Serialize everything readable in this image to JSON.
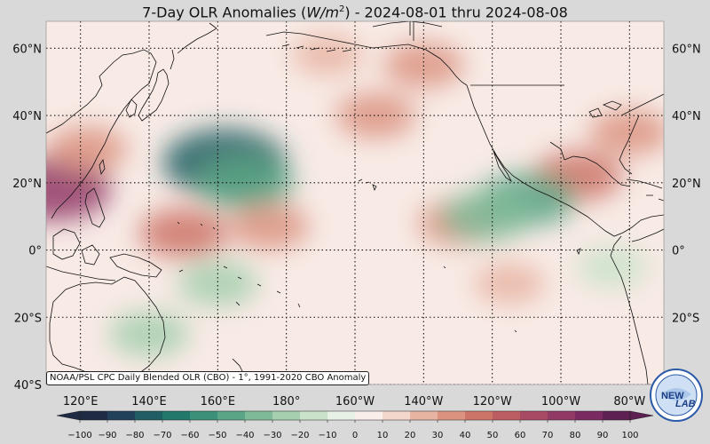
{
  "title": {
    "prefix": "7-Day OLR Anomalies (",
    "unit_var": "W/m",
    "unit_exp": "2",
    "suffix": ") - 2024-08-01 thru 2024-08-08"
  },
  "map": {
    "lat_labels": [
      "60°N",
      "40°N",
      "20°N",
      "0°",
      "20°S",
      "40°S"
    ],
    "lat_values": [
      60,
      40,
      20,
      0,
      -20,
      -40
    ],
    "lon_labels": [
      "120°E",
      "140°E",
      "160°E",
      "180°",
      "160°W",
      "140°W",
      "120°W",
      "100°W",
      "80°W"
    ],
    "lon_values": [
      120,
      140,
      160,
      180,
      200,
      220,
      240,
      260,
      280
    ],
    "lat_range": [
      -40,
      68
    ],
    "lon_range": [
      110,
      290
    ],
    "gridlines": true,
    "anomaly_fields": [
      {
        "lon": 206,
        "lat": 40,
        "value": 30,
        "note": "positive"
      },
      {
        "lon": 162,
        "lat": 26,
        "value": -80,
        "note": "negative"
      },
      {
        "lon": 168,
        "lat": 20,
        "value": -50,
        "note": "negative"
      },
      {
        "lon": 112,
        "lat": 18,
        "value": 70,
        "note": "positive"
      },
      {
        "lon": 122,
        "lat": 30,
        "value": 30,
        "note": "positive"
      },
      {
        "lon": 175,
        "lat": 7,
        "value": 30,
        "note": "positive"
      },
      {
        "lon": 230,
        "lat": 8,
        "value": 30,
        "note": "positive"
      },
      {
        "lon": 265,
        "lat": 22,
        "value": 40,
        "note": "positive"
      },
      {
        "lon": 280,
        "lat": 35,
        "value": 30,
        "note": "positive"
      },
      {
        "lon": 250,
        "lat": 15,
        "value": -50,
        "note": "negative"
      },
      {
        "lon": 238,
        "lat": 10,
        "value": -40,
        "note": "negative"
      },
      {
        "lon": 220,
        "lat": 55,
        "value": 30,
        "note": "positive"
      },
      {
        "lon": 192,
        "lat": 58,
        "value": 20,
        "note": "positive"
      },
      {
        "lon": 160,
        "lat": -10,
        "value": -30,
        "note": "negative"
      },
      {
        "lon": 275,
        "lat": -5,
        "value": -20,
        "note": "negative"
      },
      {
        "lon": 140,
        "lat": -25,
        "value": -30,
        "note": "negative"
      },
      {
        "lon": 245,
        "lat": -10,
        "value": 20,
        "note": "positive"
      },
      {
        "lon": 150,
        "lat": 5,
        "value": 40,
        "note": "positive"
      }
    ]
  },
  "credit": "NOAA/PSL CPC Daily Blended OLR (CBO) - 1°, 1991-2020 CBO Anomaly",
  "colorbar": {
    "ticks": [
      "−100",
      "−90",
      "−80",
      "−70",
      "−60",
      "−50",
      "−40",
      "−30",
      "−20",
      "−10",
      "0",
      "10",
      "20",
      "30",
      "40",
      "50",
      "60",
      "70",
      "80",
      "90",
      "100"
    ],
    "min": -100,
    "max": 100,
    "colors": [
      "#1f2a44",
      "#21405a",
      "#1f5f63",
      "#23786c",
      "#3a9078",
      "#5aa585",
      "#7fba98",
      "#a5cfae",
      "#c9e2c9",
      "#e8f1e6",
      "#f9eeea",
      "#f3d6cc",
      "#e8b4a2",
      "#db9380",
      "#cc7468",
      "#bc5d61",
      "#a84a63",
      "#923a66",
      "#7a2a60",
      "#5e1f52"
    ]
  },
  "logo": {
    "text_main": "NEW",
    "text_accent": "LAB"
  },
  "colors": {
    "background": "#d9d9d9",
    "ocean_neutral": "#f8ebe6",
    "coastline": "#111111",
    "grid": "#111111"
  }
}
